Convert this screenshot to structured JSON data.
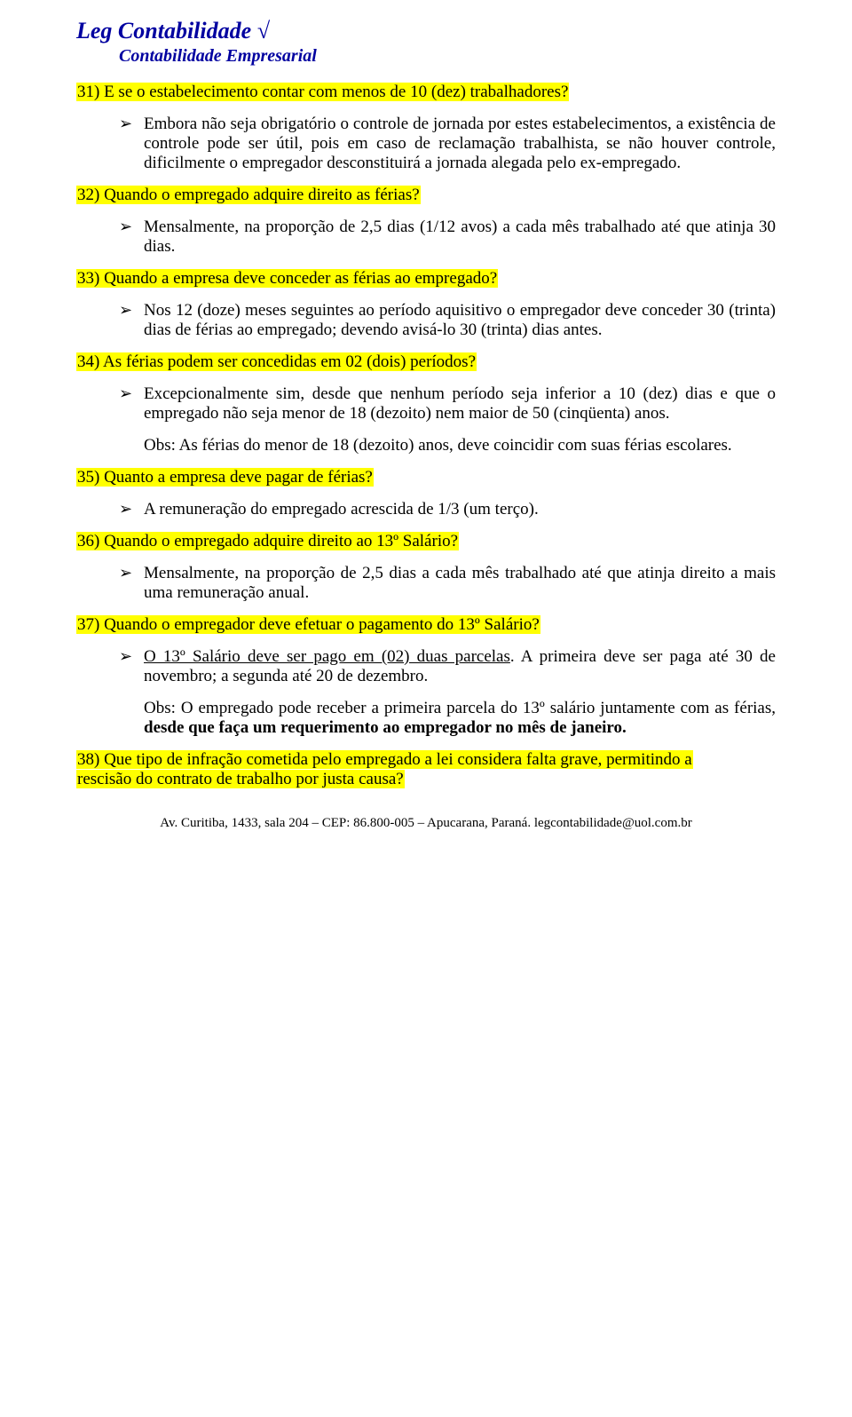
{
  "header": {
    "title": "Leg Contabilidade √",
    "subtitle": "Contabilidade Empresarial"
  },
  "colors": {
    "header_color": "#0000a0",
    "highlight_bg": "#ffff00",
    "page_bg": "#ffffff",
    "text_color": "#000000"
  },
  "typography": {
    "body_font": "Times New Roman",
    "title_fontsize": 26,
    "subtitle_fontsize": 20,
    "body_fontsize": 19,
    "footer_fontsize": 15
  },
  "items": [
    {
      "q": "31) E se o estabelecimento contar com menos de 10 (dez) trabalhadores?",
      "a": "Embora não seja obrigatório o controle de jornada por estes estabelecimentos, a existência de controle pode ser útil, pois em caso de reclamação trabalhista, se não houver controle, dificilmente o empregador desconstituirá a jornada alegada pelo ex-empregado."
    },
    {
      "q": "32) Quando o empregado adquire direito as férias?",
      "a": "Mensalmente, na proporção de 2,5 dias (1/12 avos) a cada mês trabalhado até que atinja 30 dias."
    },
    {
      "q": "33) Quando a empresa deve conceder as férias ao empregado?",
      "a": "Nos 12 (doze) meses seguintes ao período aquisitivo o empregador deve conceder 30 (trinta) dias de férias ao empregado; devendo avisá-lo 30 (trinta) dias antes."
    },
    {
      "q": "34) As férias podem ser concedidas em 02 (dois) períodos?",
      "a": "Excepcionalmente sim, desde que nenhum período seja inferior a 10 (dez) dias e que o empregado não seja menor de 18 (dezoito) nem maior de 50 (cinqüenta) anos.",
      "obs": "Obs: As férias do menor de 18 (dezoito) anos, deve coincidir com suas férias escolares."
    },
    {
      "q": "35) Quanto a empresa deve pagar de férias?",
      "a": "A remuneração do empregado acrescida de 1/3 (um terço)."
    },
    {
      "q": "36) Quando o empregado adquire direito ao 13º Salário?",
      "a": "Mensalmente, na proporção de 2,5 dias a cada mês trabalhado até que atinja direito a mais uma remuneração anual."
    },
    {
      "q": "37) Quando o empregador deve efetuar o pagamento do 13º Salário?",
      "a_pre": "O 13º Salário deve ser pago em (02) duas parcelas",
      "a_post": ". A primeira deve ser paga até 30 de novembro; a segunda até 20 de dezembro.",
      "obs_pre": "Obs: O empregado pode receber a primeira parcela do 13º salário juntamente com as férias, ",
      "obs_bold": "desde que faça um requerimento ao empregador no mês de janeiro."
    },
    {
      "q_line1": "38) Que tipo de infração cometida pelo empregado a lei considera falta grave, permitindo a",
      "q_line2": "rescisão do contrato de trabalho por justa causa?"
    }
  ],
  "footer": "Av. Curitiba, 1433, sala 204 – CEP: 86.800-005 – Apucarana, Paraná. legcontabilidade@uol.com.br"
}
